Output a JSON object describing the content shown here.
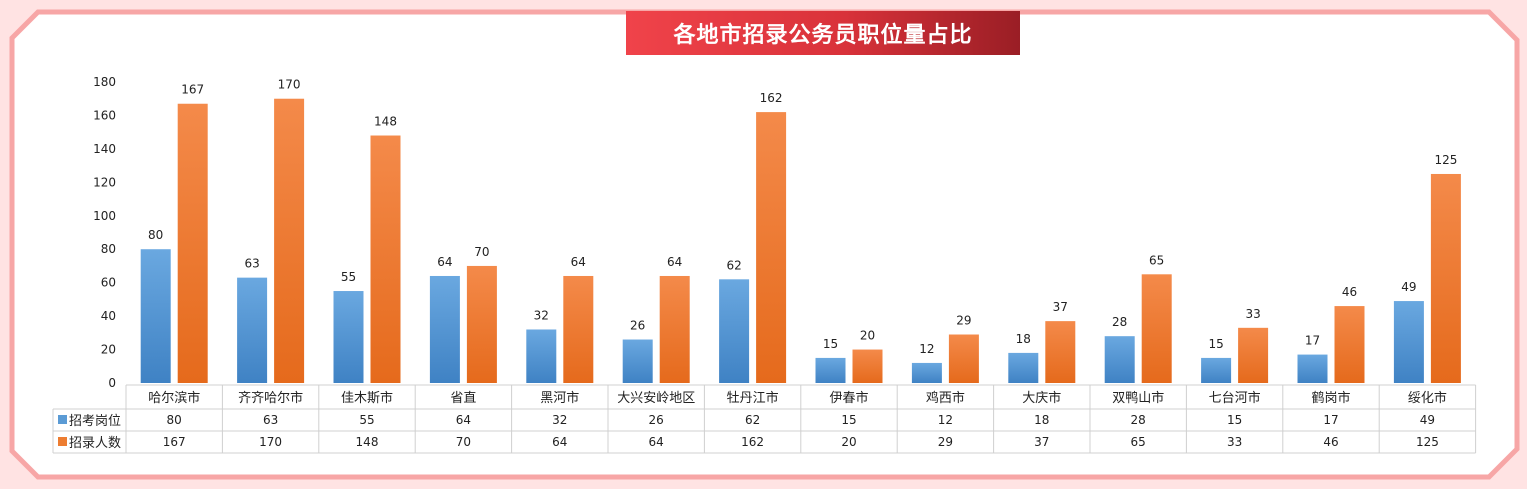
{
  "colors": {
    "series1": "#5b9bd5",
    "series2": "#ed7d31",
    "title_bg": "#e0363d",
    "frame": "#f7a6a6"
  },
  "chart_data": {
    "type": "bar",
    "title": "各地市招录公务员职位量占比",
    "categories": [
      "哈尔滨市",
      "齐齐哈尔市",
      "佳木斯市",
      "省直",
      "黑河市",
      "大兴安岭地区",
      "牡丹江市",
      "伊春市",
      "鸡西市",
      "大庆市",
      "双鸭山市",
      "七台河市",
      "鹤岗市",
      "绥化市"
    ],
    "series": [
      {
        "name": "招考岗位",
        "values": [
          80,
          63,
          55,
          64,
          32,
          26,
          62,
          15,
          12,
          18,
          28,
          15,
          17,
          49
        ]
      },
      {
        "name": "招录人数",
        "values": [
          167,
          170,
          148,
          70,
          64,
          64,
          162,
          20,
          29,
          37,
          65,
          33,
          46,
          125
        ]
      }
    ],
    "y_ticks": [
      "0",
      "20",
      "40",
      "60",
      "80",
      "100",
      "120",
      "140",
      "160",
      "180"
    ],
    "ylim": [
      0,
      180
    ],
    "data_table": true,
    "legend": "in-table"
  }
}
